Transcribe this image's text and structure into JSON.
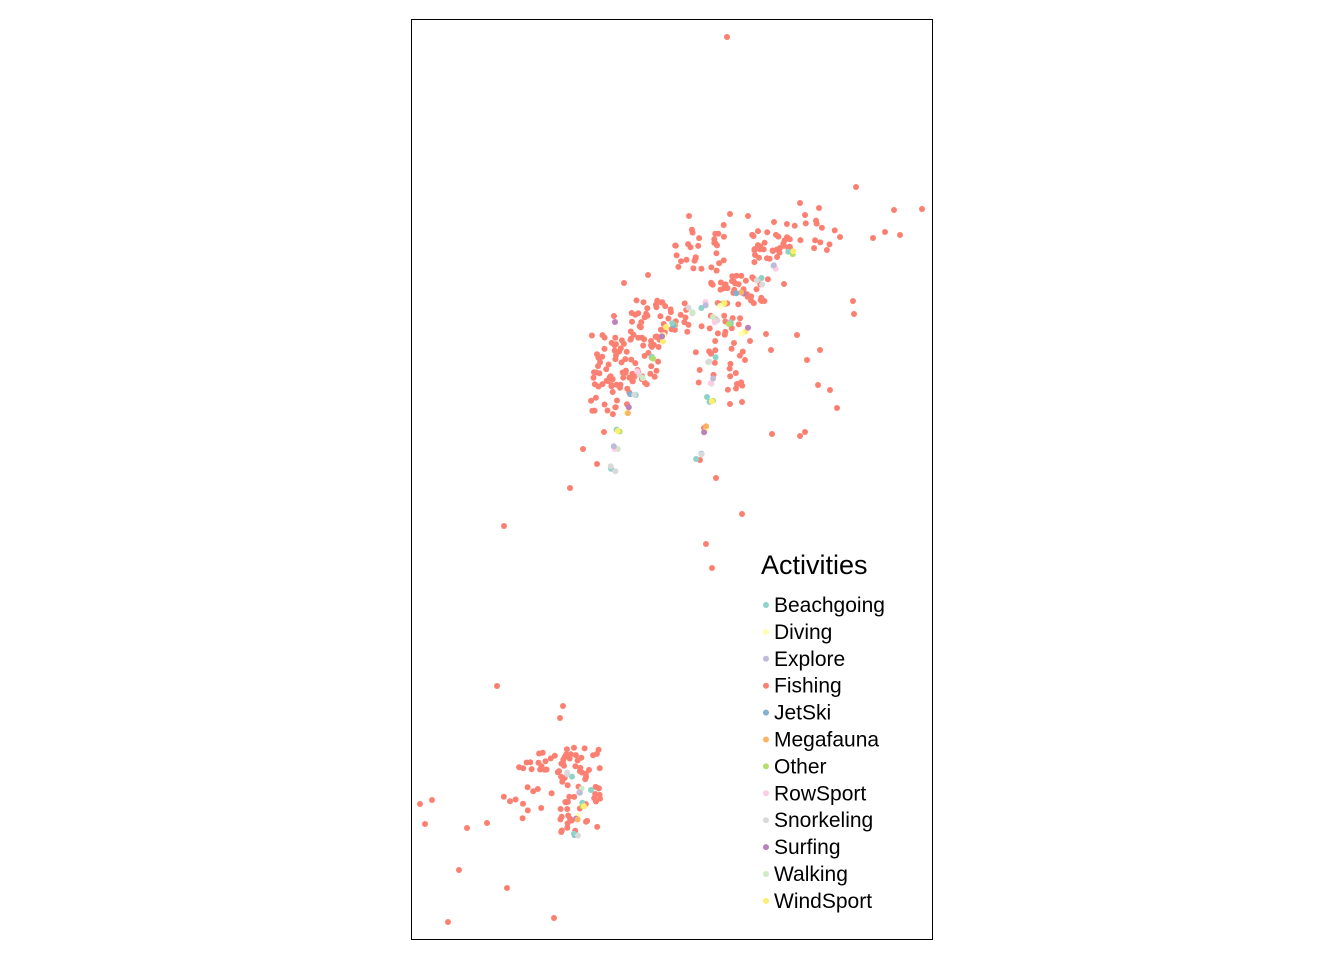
{
  "legend": {
    "title": "Activities",
    "items": [
      {
        "label": "Beachgoing",
        "color": "#8DD3C7"
      },
      {
        "label": "Diving",
        "color": "#FFFFB3"
      },
      {
        "label": "Explore",
        "color": "#BEBADA"
      },
      {
        "label": "Fishing",
        "color": "#FB8072"
      },
      {
        "label": "JetSki",
        "color": "#80B1D3"
      },
      {
        "label": "Megafauna",
        "color": "#FDB462"
      },
      {
        "label": "Other",
        "color": "#B3DE69"
      },
      {
        "label": "RowSport",
        "color": "#FCCDE5"
      },
      {
        "label": "Snorkeling",
        "color": "#D9D9D9"
      },
      {
        "label": "Surfing",
        "color": "#BC80BD"
      },
      {
        "label": "Walking",
        "color": "#CCEBC5"
      },
      {
        "label": "WindSport",
        "color": "#FFED6F"
      }
    ]
  }
}
